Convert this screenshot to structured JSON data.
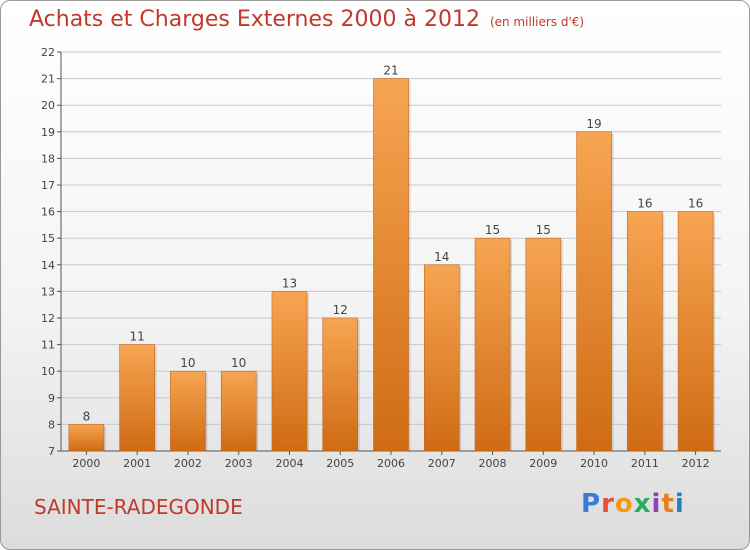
{
  "header": {
    "title": "Achats et Charges Externes 2000 à 2012",
    "unit": "(en milliers d'€)"
  },
  "commune": "SAINTE-RADEGONDE",
  "logo": {
    "text": "Proxiti",
    "colors": [
      "#3a7bd5",
      "#e74c3c",
      "#f39c12",
      "#27ae60",
      "#8e44ad",
      "#e67e22",
      "#2980b9"
    ]
  },
  "colors": {
    "bar_top": "#f7a552",
    "bar_bottom": "#cf6b14",
    "text_accent": "#c0392b",
    "grid": "#c8c8c8"
  },
  "chart_data": {
    "type": "bar",
    "title": "Achats et Charges Externes 2000 à 2012",
    "categories": [
      "2000",
      "2001",
      "2002",
      "2003",
      "2004",
      "2005",
      "2006",
      "2007",
      "2008",
      "2009",
      "2010",
      "2011",
      "2012"
    ],
    "values": [
      8,
      11,
      10,
      10,
      13,
      12,
      21,
      14,
      15,
      15,
      19,
      16,
      16
    ],
    "ylim": [
      7,
      22
    ],
    "yticks": [
      7,
      8,
      9,
      10,
      11,
      12,
      13,
      14,
      15,
      16,
      17,
      18,
      19,
      20,
      21,
      22
    ],
    "grid": true,
    "xlabel": "",
    "ylabel": ""
  }
}
